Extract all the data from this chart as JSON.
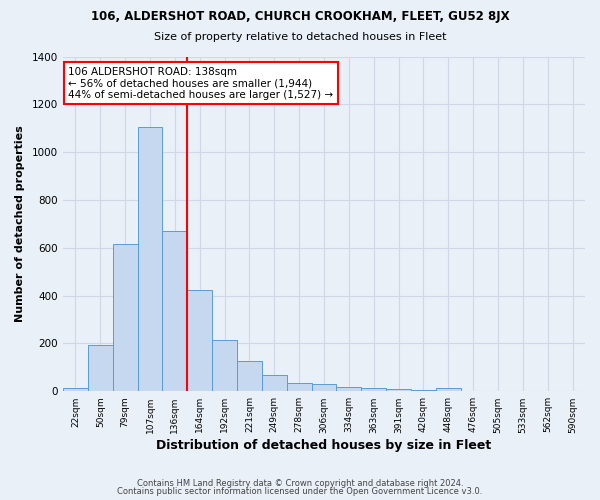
{
  "title": "106, ALDERSHOT ROAD, CHURCH CROOKHAM, FLEET, GU52 8JX",
  "subtitle": "Size of property relative to detached houses in Fleet",
  "xlabel": "Distribution of detached houses by size in Fleet",
  "ylabel": "Number of detached properties",
  "footer_line1": "Contains HM Land Registry data © Crown copyright and database right 2024.",
  "footer_line2": "Contains public sector information licensed under the Open Government Licence v3.0.",
  "categories": [
    "22sqm",
    "50sqm",
    "79sqm",
    "107sqm",
    "136sqm",
    "164sqm",
    "192sqm",
    "221sqm",
    "249sqm",
    "278sqm",
    "306sqm",
    "334sqm",
    "363sqm",
    "391sqm",
    "420sqm",
    "448sqm",
    "476sqm",
    "505sqm",
    "533sqm",
    "562sqm",
    "590sqm"
  ],
  "values": [
    15,
    195,
    615,
    1105,
    670,
    425,
    215,
    128,
    70,
    33,
    30,
    18,
    12,
    10,
    5,
    12,
    0,
    0,
    0,
    0,
    0
  ],
  "bar_color": "#c5d8f0",
  "bar_edge_color": "#5b9bd5",
  "grid_color": "#d0d8e8",
  "background_color": "#eaf0f8",
  "annotation_text": "106 ALDERSHOT ROAD: 138sqm\n← 56% of detached houses are smaller (1,944)\n44% of semi-detached houses are larger (1,527) →",
  "vline_x": 4.5,
  "vline_color": "red",
  "annotation_box_edge": "red",
  "ylim": [
    0,
    1400
  ],
  "yticks": [
    0,
    200,
    400,
    600,
    800,
    1000,
    1200,
    1400
  ]
}
